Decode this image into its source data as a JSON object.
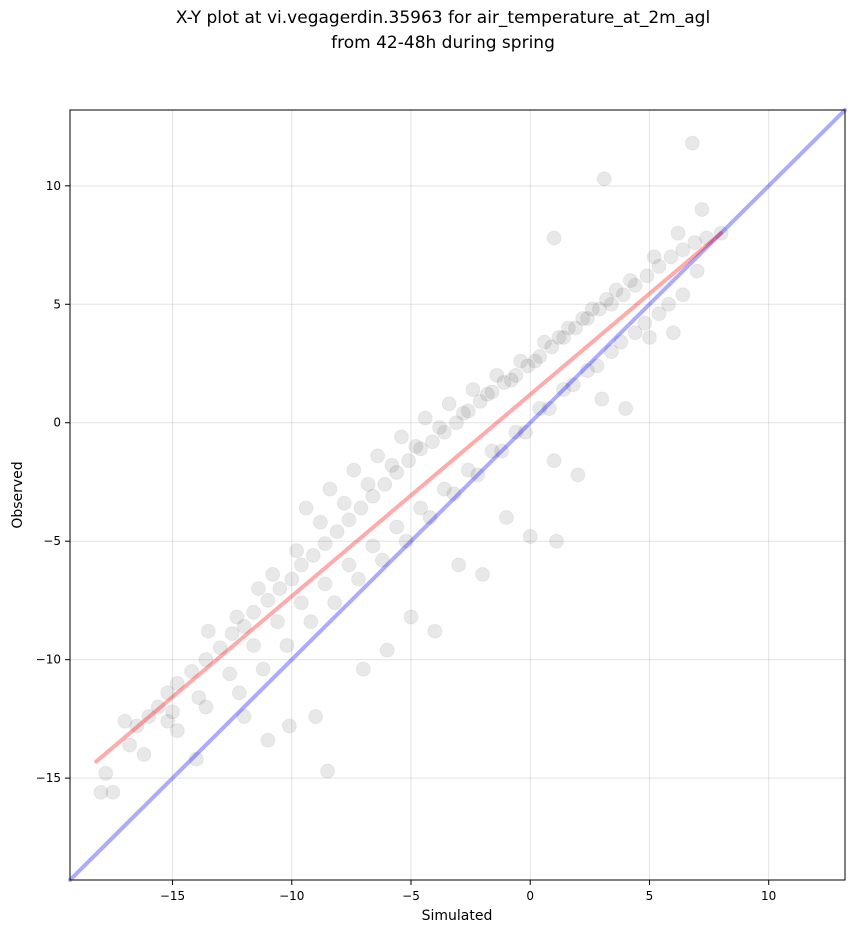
{
  "chart_data": {
    "type": "scatter",
    "title_line1": "X-Y plot at vi.vegagerdin.35963 for air_temperature_at_2m_agl",
    "title_line2": "from 42-48h during spring",
    "xlabel": "Simulated",
    "ylabel": "Observed",
    "xlim": [
      -19.3,
      13.2
    ],
    "ylim": [
      -19.3,
      13.2
    ],
    "xticks": [
      -15,
      -10,
      -5,
      0,
      5,
      10
    ],
    "yticks": [
      -15,
      -10,
      -5,
      0,
      5,
      10
    ],
    "xtick_labels": [
      "−15",
      "−10",
      "−5",
      "0",
      "5",
      "10"
    ],
    "ytick_labels": [
      "−15",
      "−10",
      "−5",
      "0",
      "5",
      "10"
    ],
    "grid": true,
    "point_color": "#000000",
    "identity_line": {
      "x": [
        -19.3,
        13.2
      ],
      "y": [
        -19.3,
        13.2
      ],
      "color": "#0000ff"
    },
    "fit_line": {
      "x": [
        -18.2,
        8.0
      ],
      "y": [
        -14.3,
        8.0
      ],
      "color": "#ff0000"
    },
    "series": [
      {
        "x": [
          -18.0,
          -17.5,
          -17.8,
          -16.8,
          -16.5,
          -16.0,
          -15.6,
          -15.2,
          -14.8,
          -14.2,
          -13.6,
          -13.0,
          -12.5,
          -12.0,
          -11.6,
          -11.0,
          -10.5,
          -10.0,
          -9.6,
          -9.1,
          -8.6,
          -8.1,
          -7.6,
          -7.1,
          -6.6,
          -6.1,
          -5.6,
          -5.1,
          -4.6,
          -4.1,
          -3.6,
          -3.1,
          -2.6,
          -2.1,
          -1.6,
          -1.1,
          -0.6,
          -0.1,
          0.4,
          0.9,
          1.4,
          1.9,
          2.4,
          2.9,
          3.4,
          3.9,
          4.4,
          4.9,
          5.4,
          5.9,
          6.4,
          6.9,
          7.4,
          8.0,
          -16.2,
          -14.8,
          -13.6,
          -12.2,
          -11.2,
          -10.2,
          -9.2,
          -8.2,
          -7.2,
          -6.2,
          -5.2,
          -4.2,
          -3.2,
          -2.2,
          -1.2,
          -0.2,
          0.8,
          1.8,
          2.8,
          3.8,
          4.8,
          5.8,
          -15.2,
          -13.9,
          -12.6,
          -11.6,
          -10.6,
          -9.6,
          -8.6,
          -7.6,
          -6.6,
          -5.6,
          -4.6,
          -3.6,
          -2.6,
          -1.6,
          -0.6,
          0.4,
          1.4,
          2.4,
          3.4,
          4.4,
          5.4,
          6.4,
          -9.4,
          -8.4,
          -7.4,
          -6.4,
          -5.4,
          -4.4,
          -3.4,
          -2.4,
          -1.4,
          -0.4,
          0.6,
          1.6,
          2.6,
          3.6,
          -13.5,
          -12.3,
          -11.4,
          -10.8,
          -9.8,
          -8.8,
          -7.8,
          -6.8,
          -5.8,
          -4.8,
          -3.8,
          -2.8,
          -1.8,
          -0.8,
          0.2,
          1.2,
          2.2,
          3.2,
          4.2,
          5.2,
          6.2,
          7.2,
          6.8,
          3.1,
          1.0,
          1.1,
          -14.0,
          -12.0,
          -10.1,
          -8.5,
          -6.0,
          -4.0,
          -2.0,
          0.0,
          2.0,
          4.0,
          6.0,
          -17.0,
          -15.0,
          -11.0,
          -9.0,
          -7.0,
          -5.0,
          -3.0,
          -1.0,
          1.0,
          3.0,
          5.0,
          7.0
        ],
        "y": [
          -15.6,
          -15.6,
          -14.8,
          -13.6,
          -12.8,
          -12.4,
          -12.0,
          -11.4,
          -11.0,
          -10.5,
          -10.0,
          -9.5,
          -8.9,
          -8.6,
          -8.0,
          -7.5,
          -7.0,
          -6.6,
          -6.0,
          -5.6,
          -5.1,
          -4.6,
          -4.1,
          -3.6,
          -3.1,
          -2.6,
          -2.1,
          -1.6,
          -1.1,
          -0.8,
          -0.4,
          0.0,
          0.5,
          0.9,
          1.3,
          1.7,
          2.0,
          2.4,
          2.8,
          3.2,
          3.6,
          4.0,
          4.4,
          4.8,
          5.0,
          5.4,
          5.8,
          6.2,
          6.6,
          7.0,
          7.3,
          7.6,
          7.8,
          8.0,
          -14.0,
          -13.0,
          -12.0,
          -11.4,
          -10.4,
          -9.4,
          -8.4,
          -7.6,
          -6.6,
          -5.8,
          -5.0,
          -4.0,
          -3.0,
          -2.2,
          -1.2,
          -0.4,
          0.6,
          1.6,
          2.4,
          3.4,
          4.2,
          5.0,
          -12.6,
          -11.6,
          -10.6,
          -9.4,
          -8.4,
          -7.6,
          -6.8,
          -6.0,
          -5.2,
          -4.4,
          -3.6,
          -2.8,
          -2.0,
          -1.2,
          -0.4,
          0.6,
          1.4,
          2.2,
          3.0,
          3.8,
          4.6,
          5.4,
          -3.6,
          -2.8,
          -2.0,
          -1.4,
          -0.6,
          0.2,
          0.8,
          1.4,
          2.0,
          2.6,
          3.4,
          4.0,
          4.8,
          5.6,
          -8.8,
          -8.2,
          -7.0,
          -6.4,
          -5.4,
          -4.2,
          -3.4,
          -2.6,
          -1.8,
          -1.0,
          -0.2,
          0.4,
          1.2,
          1.8,
          2.6,
          3.6,
          4.4,
          5.2,
          6.0,
          7.0,
          8.0,
          9.0,
          11.8,
          10.3,
          7.8,
          -5.0,
          -14.2,
          -12.4,
          -12.8,
          -14.7,
          -9.6,
          -8.8,
          -6.4,
          -4.8,
          -2.2,
          0.6,
          3.8,
          -12.6,
          -12.2,
          -13.4,
          -12.4,
          -10.4,
          -8.2,
          -6.0,
          -4.0,
          -1.6,
          1.0,
          3.6,
          6.4
        ],
        "color": "#000000"
      }
    ]
  }
}
